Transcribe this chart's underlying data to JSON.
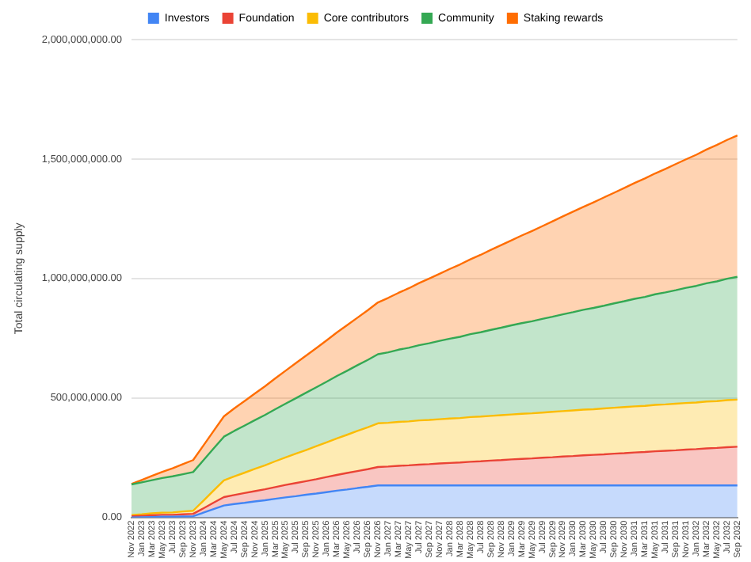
{
  "chart_data": {
    "type": "area",
    "stacked": true,
    "ylabel": "Total circulating supply",
    "legend": "top",
    "grid": "y",
    "marker": "none",
    "categories": [
      "Nov 2022",
      "Jan 2023",
      "Mar 2023",
      "May 2023",
      "Jul 2023",
      "Sep 2023",
      "Nov 2023",
      "Jan 2024",
      "Mar 2024",
      "May 2024",
      "Jul 2024",
      "Sep 2024",
      "Nov 2024",
      "Jan 2025",
      "Mar 2025",
      "May 2025",
      "Jul 2025",
      "Sep 2025",
      "Nov 2025",
      "Jan 2026",
      "Mar 2026",
      "May 2026",
      "Jul 2026",
      "Sep 2026",
      "Nov 2026",
      "Jan 2027",
      "Mar 2027",
      "May 2027",
      "Jul 2027",
      "Sep 2027",
      "Nov 2027",
      "Jan 2028",
      "Mar 2028",
      "May 2028",
      "Jul 2028",
      "Sep 2028",
      "Nov 2028",
      "Jan 2029",
      "Mar 2029",
      "May 2029",
      "Jul 2029",
      "Sep 2029",
      "Nov 2029",
      "Jan 2030",
      "Mar 2030",
      "May 2030",
      "Jul 2030",
      "Sep 2030",
      "Nov 2030",
      "Jan 2031",
      "Mar 2031",
      "May 2031",
      "Jul 2031",
      "Sep 2031",
      "Nov 2031",
      "Jan 2032",
      "Mar 2032",
      "May 2032",
      "Jul 2032",
      "Sep 2032"
    ],
    "ylim": [
      0,
      2000000000
    ],
    "yticks": [
      {
        "value": 0,
        "label": "0.00"
      },
      {
        "value": 500000000,
        "label": "500,000,000.00"
      },
      {
        "value": 1000000000,
        "label": "1,000,000,000.00"
      },
      {
        "value": 1500000000,
        "label": "1,500,000,000.00"
      },
      {
        "value": 2000000000,
        "label": "2,000,000,000.00"
      }
    ],
    "series": [
      {
        "name": "Investors",
        "color": "#4285f4",
        "values": [
          0,
          1000000.0,
          2000000.0,
          3000000.0,
          3000000.0,
          4000000.0,
          5000000.0,
          20000000.0,
          35000000.0,
          50000000.0,
          56000000.0,
          61000000.0,
          67000000.0,
          72000000.0,
          78000000.0,
          84000000.0,
          89000000.0,
          95000000.0,
          100000000.0,
          106000000.0,
          112000000.0,
          117000000.0,
          123000000.0,
          128000000.0,
          134000000.0,
          134000000.0,
          134000000.0,
          134000000.0,
          134000000.0,
          134000000.0,
          134000000.0,
          134000000.0,
          134000000.0,
          134000000.0,
          134000000.0,
          134000000.0,
          134000000.0,
          134000000.0,
          134000000.0,
          134000000.0,
          134000000.0,
          134000000.0,
          134000000.0,
          134000000.0,
          134000000.0,
          134000000.0,
          134000000.0,
          134000000.0,
          134000000.0,
          134000000.0,
          134000000.0,
          134000000.0,
          134000000.0,
          134000000.0,
          134000000.0,
          134000000.0,
          134000000.0,
          134000000.0,
          134000000.0,
          134000000.0
        ]
      },
      {
        "name": "Foundation",
        "color": "#ea4335",
        "values": [
          5000000.0,
          6000000.0,
          7000000.0,
          8000000.0,
          8000000.0,
          9000000.0,
          10000000.0,
          18000000.0,
          27000000.0,
          35000000.0,
          38000000.0,
          41000000.0,
          43000000.0,
          46000000.0,
          49000000.0,
          52000000.0,
          55000000.0,
          57000000.0,
          60000000.0,
          63000000.0,
          66000000.0,
          69000000.0,
          71000000.0,
          74000000.0,
          77000000.0,
          79000000.0,
          82000000.0,
          84000000.0,
          87000000.0,
          89000000.0,
          92000000.0,
          94000000.0,
          96000000.0,
          99000000.0,
          101000000.0,
          104000000.0,
          106000000.0,
          109000000.0,
          111000000.0,
          113000000.0,
          116000000.0,
          118000000.0,
          121000000.0,
          123000000.0,
          126000000.0,
          128000000.0,
          130000000.0,
          133000000.0,
          135000000.0,
          138000000.0,
          140000000.0,
          143000000.0,
          145000000.0,
          147000000.0,
          150000000.0,
          152000000.0,
          155000000.0,
          157000000.0,
          160000000.0,
          162000000.0
        ]
      },
      {
        "name": "Core contributors",
        "color": "#fbbc04",
        "values": [
          5000000.0,
          6000000.0,
          8000000.0,
          9000000.0,
          10000000.0,
          12000000.0,
          13000000.0,
          32000000.0,
          51000000.0,
          70000000.0,
          78000000.0,
          85000000.0,
          93000000.0,
          100000000.0,
          108000000.0,
          115000000.0,
          123000000.0,
          130000000.0,
          138000000.0,
          145000000.0,
          153000000.0,
          160000000.0,
          168000000.0,
          175000000.0,
          183000000.0,
          183000000.0,
          184000000.0,
          184000000.0,
          185000000.0,
          185000000.0,
          185000000.0,
          186000000.0,
          186000000.0,
          187000000.0,
          187000000.0,
          187000000.0,
          188000000.0,
          188000000.0,
          189000000.0,
          189000000.0,
          189000000.0,
          190000000.0,
          190000000.0,
          191000000.0,
          191000000.0,
          191000000.0,
          192000000.0,
          192000000.0,
          193000000.0,
          193000000.0,
          193000000.0,
          194000000.0,
          194000000.0,
          195000000.0,
          195000000.0,
          195000000.0,
          196000000.0,
          196000000.0,
          197000000.0,
          197000000.0
        ]
      },
      {
        "name": "Community",
        "color": "#34a853",
        "values": [
          128000000.0,
          134000000.0,
          139000000.0,
          145000000.0,
          151000000.0,
          156000000.0,
          162000000.0,
          169000000.0,
          176000000.0,
          183000000.0,
          190000000.0,
          197000000.0,
          204000000.0,
          211000000.0,
          218000000.0,
          225000000.0,
          232000000.0,
          240000000.0,
          247000000.0,
          254000000.0,
          261000000.0,
          268000000.0,
          275000000.0,
          282000000.0,
          289000000.0,
          295000000.0,
          302000000.0,
          308000000.0,
          315000000.0,
          321000000.0,
          328000000.0,
          334000000.0,
          340000000.0,
          347000000.0,
          353000000.0,
          360000000.0,
          366000000.0,
          373000000.0,
          379000000.0,
          385000000.0,
          392000000.0,
          398000000.0,
          405000000.0,
          411000000.0,
          418000000.0,
          424000000.0,
          430000000.0,
          437000000.0,
          443000000.0,
          450000000.0,
          456000000.0,
          463000000.0,
          469000000.0,
          475000000.0,
          482000000.0,
          488000000.0,
          495000000.0,
          501000000.0,
          508000000.0,
          514000000.0
        ]
      },
      {
        "name": "Staking rewards",
        "color": "#ff6d01",
        "values": [
          2000000.0,
          10000000.0,
          18000000.0,
          26000000.0,
          34000000.0,
          42000000.0,
          50000000.0,
          62000000.0,
          73000000.0,
          85000000.0,
          94000000.0,
          103000000.0,
          111000000.0,
          120000000.0,
          129000000.0,
          138000000.0,
          147000000.0,
          155000000.0,
          164000000.0,
          173000000.0,
          182000000.0,
          191000000.0,
          199000000.0,
          208000000.0,
          217000000.0,
          228000000.0,
          238000000.0,
          249000000.0,
          260000000.0,
          271000000.0,
          281000000.0,
          292000000.0,
          303000000.0,
          313000000.0,
          324000000.0,
          335000000.0,
          346000000.0,
          356000000.0,
          367000000.0,
          378000000.0,
          388000000.0,
          399000000.0,
          410000000.0,
          421000000.0,
          431000000.0,
          442000000.0,
          453000000.0,
          463000000.0,
          474000000.0,
          485000000.0,
          496000000.0,
          506000000.0,
          517000000.0,
          528000000.0,
          538000000.0,
          549000000.0,
          560000000.0,
          571000000.0,
          581000000.0,
          592000000.0
        ]
      }
    ]
  }
}
